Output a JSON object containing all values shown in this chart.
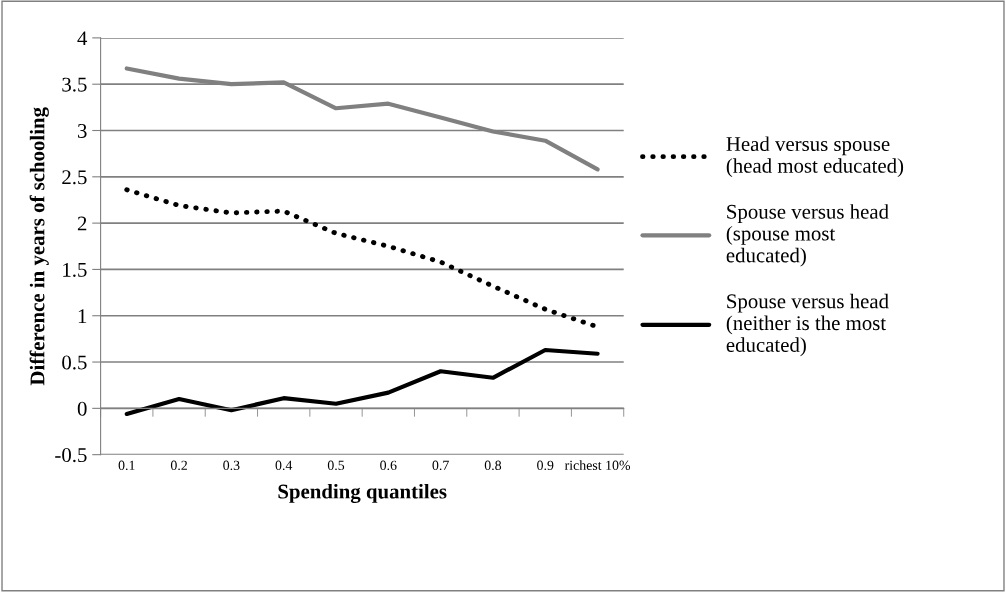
{
  "chart_data": {
    "type": "line",
    "xlabel": "Spending quantiles",
    "ylabel": "Difference in years of schooling",
    "categories": [
      "0.1",
      "0.2",
      "0.3",
      "0.4",
      "0.5",
      "0.6",
      "0.7",
      "0.8",
      "0.9",
      "richest 10%"
    ],
    "series": [
      {
        "name": "Head versus spouse\n(head most educated)",
        "color": "#000000",
        "line_style": "dotted",
        "values": [
          2.36,
          2.19,
          2.11,
          2.13,
          1.89,
          1.75,
          1.58,
          1.32,
          1.07,
          0.88
        ]
      },
      {
        "name": "Spouse versus head\n(spouse most\neducated)",
        "color": "#808080",
        "line_style": "solid",
        "values": [
          3.67,
          3.56,
          3.5,
          3.52,
          3.24,
          3.29,
          3.14,
          2.99,
          2.89,
          2.58
        ]
      },
      {
        "name": "Spouse versus head\n(neither is the most\neducated)",
        "color": "#000000",
        "line_style": "solid",
        "values": [
          -0.06,
          0.1,
          -0.02,
          0.11,
          0.05,
          0.17,
          0.4,
          0.33,
          0.63,
          0.59
        ]
      }
    ],
    "ylim": [
      -0.5,
      4
    ],
    "yticks": [
      -0.5,
      0,
      0.5,
      1,
      1.5,
      2,
      2.5,
      3,
      3.5,
      4
    ],
    "grid": "y",
    "legend": "right"
  }
}
